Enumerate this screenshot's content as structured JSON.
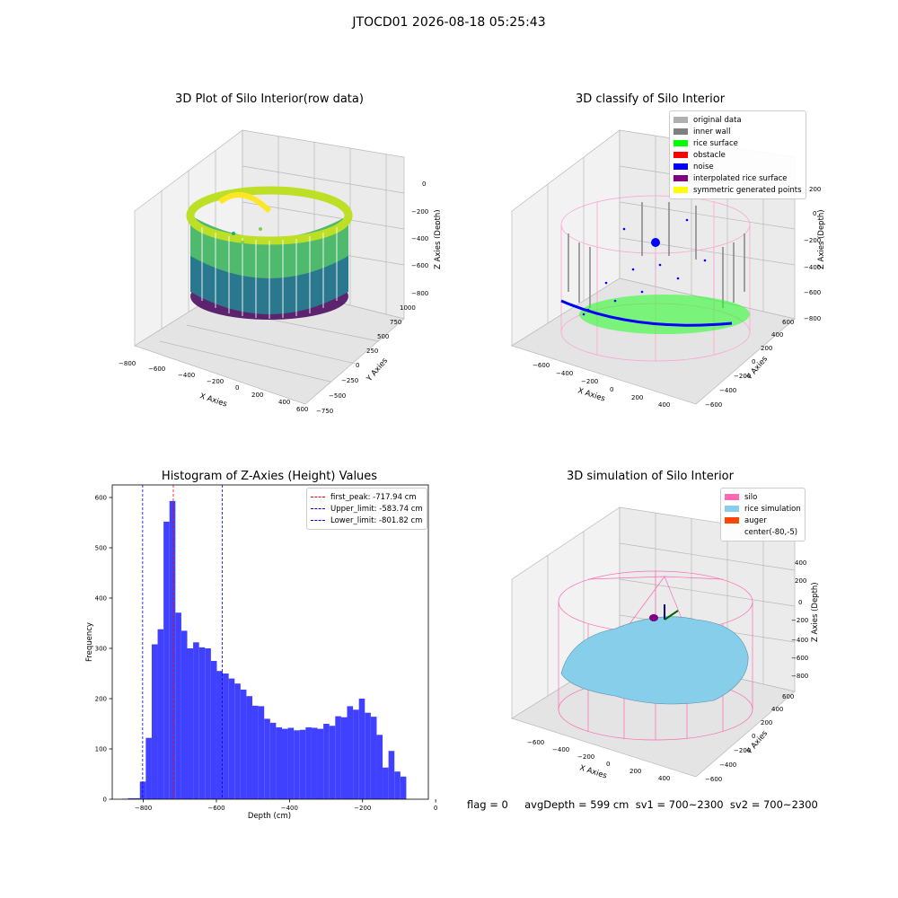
{
  "suptitle": "JTOCD01 2026-08-18 05:25:43",
  "footer": "flag = 0     avgDepth = 599 cm  sv1 = 700~2300  sv2 = 700~2300",
  "chart_data": [
    {
      "type": "scatter",
      "title": "3D Plot of Silo Interior(row data)",
      "xlabel": "X Axies",
      "ylabel": "Y Axies",
      "zlabel": "Z Axies (Depth)",
      "xticks": [
        "−800",
        "−600",
        "−400",
        "−200",
        "0",
        "200",
        "400",
        "600"
      ],
      "yticks": [
        "−750",
        "−500",
        "−250",
        "0",
        "250",
        "500",
        "750",
        "1000"
      ],
      "zticks": [
        "0",
        "−200",
        "−400",
        "−600",
        "−800"
      ],
      "colormap": "viridis"
    },
    {
      "type": "scatter",
      "title": "3D classify of Silo Interior",
      "xlabel": "X Axies",
      "ylabel": "Y Axies",
      "zlabel": "Z Axies (Depth)",
      "xticks": [
        "−600",
        "−400",
        "−200",
        "0",
        "200",
        "400"
      ],
      "yticks": [
        "−600",
        "−400",
        "−200",
        "0",
        "200",
        "400",
        "600"
      ],
      "zticks": [
        "200",
        "0",
        "−200",
        "−400",
        "−600",
        "−800"
      ],
      "legend": [
        {
          "label": "original data",
          "color": "#b0b0b0"
        },
        {
          "label": "inner wall",
          "color": "#808080"
        },
        {
          "label": "rice surface",
          "color": "#00ff00"
        },
        {
          "label": "obstacle",
          "color": "#ff0000"
        },
        {
          "label": "noise",
          "color": "#0000ff"
        },
        {
          "label": "interpolated rice surface",
          "color": "#800080"
        },
        {
          "label": "symmetric generated points",
          "color": "#ffff00"
        }
      ]
    },
    {
      "type": "bar",
      "title": "Histogram of Z-Axies (Height) Values",
      "xlabel": "Depth (cm)",
      "ylabel": "Frequency",
      "xlim": [
        -885,
        -20
      ],
      "ylim": [
        0,
        625
      ],
      "xticks": [
        -800,
        -600,
        -400,
        -200,
        0
      ],
      "xtick_labels": [
        "−800",
        "−600",
        "−400",
        "−200",
        "0"
      ],
      "yticks": [
        0,
        100,
        200,
        300,
        400,
        500,
        600
      ],
      "bar_color": "#4040ff",
      "bin_start": -858,
      "bin_width": 16.2,
      "values": [
        1,
        2,
        2,
        35,
        122,
        308,
        338,
        552,
        593,
        371,
        335,
        300,
        312,
        302,
        300,
        275,
        255,
        250,
        240,
        230,
        218,
        205,
        186,
        185,
        160,
        152,
        143,
        140,
        142,
        137,
        138,
        143,
        142,
        140,
        150,
        146,
        165,
        163,
        185,
        178,
        200,
        172,
        164,
        128,
        63,
        96,
        55,
        45
      ],
      "vlines": [
        {
          "label": "first_peak: -717.94 cm",
          "x": -717.94,
          "color": "#ff0000"
        },
        {
          "label": "Upper_limit: -583.74 cm",
          "x": -583.74,
          "color": "#0000ff"
        },
        {
          "label": "Lower_limit: -801.82 cm",
          "x": -801.82,
          "color": "#0000ff"
        }
      ]
    },
    {
      "type": "surface",
      "title": "3D simulation of Silo Interior",
      "xlabel": "X Axies",
      "ylabel": "Y Axies",
      "zlabel": "Z Axies (Depth)",
      "xticks": [
        "−600",
        "−400",
        "−200",
        "0",
        "200",
        "400"
      ],
      "yticks": [
        "−600",
        "−400",
        "−200",
        "0",
        "200",
        "400",
        "600"
      ],
      "zticks": [
        "400",
        "200",
        "0",
        "−200",
        "−400",
        "−600",
        "−800"
      ],
      "legend": [
        {
          "label": "silo",
          "color": "#ff69b4"
        },
        {
          "label": "rice simulation",
          "color": "#87ceeb"
        },
        {
          "label": "auger",
          "color": "#ff4500"
        },
        {
          "label": "center(-80,-5)",
          "color": ""
        }
      ]
    }
  ]
}
